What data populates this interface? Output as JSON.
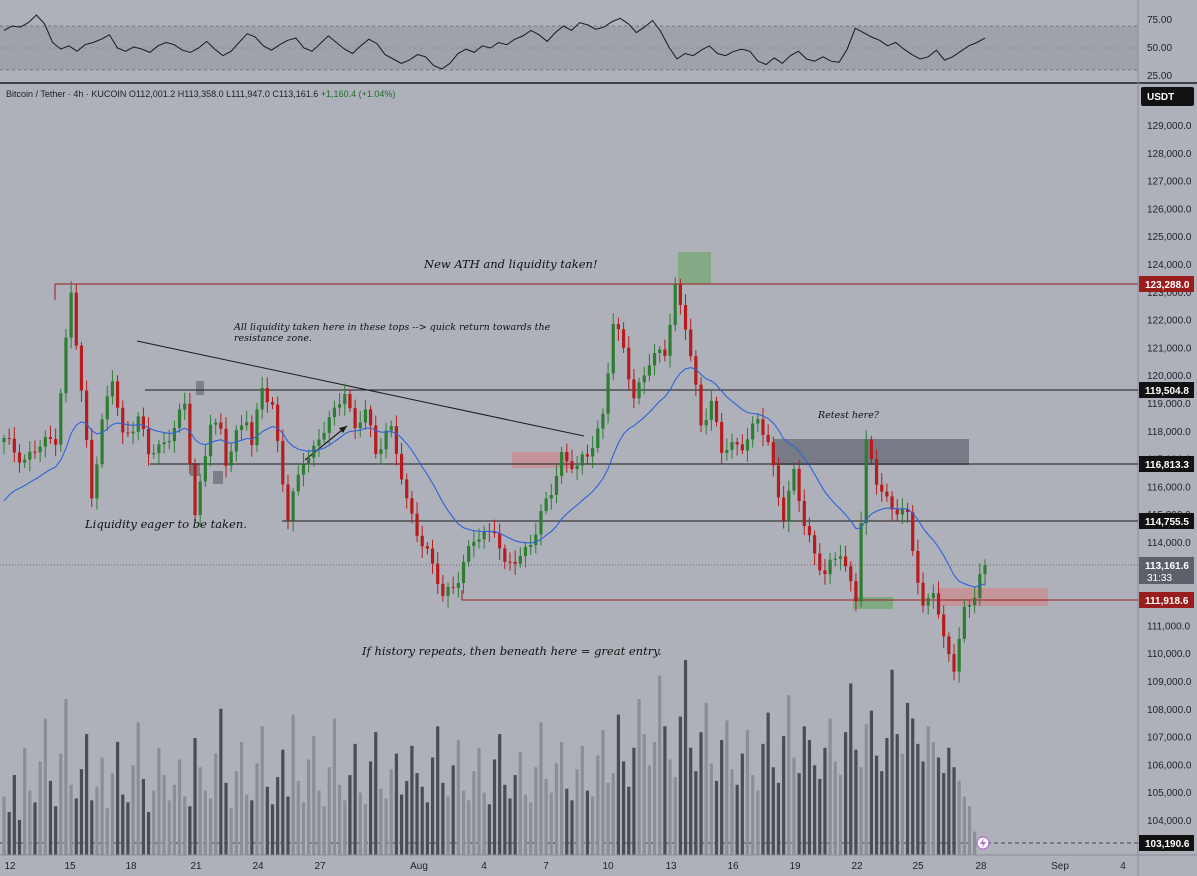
{
  "legend": {
    "symbol": "Bitcoin / Tether · 4h · KUCOIN",
    "open": "O112,001.2",
    "high": "H113,358.0",
    "low": "L111,947.0",
    "close": "C113,161.6",
    "change": "+1,160.4 (+1.04%)"
  },
  "currency_button": "USDT",
  "countdown": "31:33",
  "rsi": {
    "ticks": [
      "75.00",
      "50.00",
      "25.00"
    ],
    "values": [
      66,
      70,
      69,
      73,
      80,
      72,
      55,
      49,
      52,
      47,
      53,
      55,
      58,
      62,
      50,
      47,
      51,
      49,
      46,
      52,
      55,
      53,
      48,
      46,
      50,
      56,
      49,
      43,
      47,
      55,
      63,
      60,
      52,
      48,
      53,
      57,
      59,
      50,
      47,
      54,
      61,
      55,
      49,
      45,
      52,
      58,
      54,
      44,
      40,
      36,
      39,
      44,
      42,
      34,
      31,
      36,
      45,
      49,
      46,
      52,
      50,
      55,
      53,
      58,
      61,
      66,
      62,
      56,
      64,
      70,
      66,
      73,
      71,
      67,
      69,
      74,
      77,
      72,
      64,
      69,
      75,
      65,
      51,
      40,
      45,
      43,
      48,
      52,
      45,
      43,
      47,
      49,
      47,
      38,
      35,
      41,
      36,
      43,
      47,
      40,
      38,
      42,
      38,
      37,
      49,
      68,
      64,
      60,
      57,
      52,
      55,
      49,
      44,
      40,
      42,
      48,
      39,
      42,
      47,
      52,
      55,
      59
    ]
  },
  "chart_data": {
    "type": "candlestick",
    "title": "Bitcoin / Tether · 4h · KUCOIN",
    "ylim": [
      103000,
      130500
    ],
    "y_ticks": [
      "129,000.0",
      "128,000.0",
      "127,000.0",
      "126,000.0",
      "125,000.0",
      "124,000.0",
      "123,000.0",
      "122,000.0",
      "121,000.0",
      "120,000.0",
      "119,000.0",
      "118,000.0",
      "117,000.0",
      "116,000.0",
      "115,000.0",
      "114,000.0",
      "113,000.0",
      "112,000.0",
      "111,000.0",
      "110,000.0",
      "109,000.0",
      "108,000.0",
      "107,000.0",
      "106,000.0",
      "105,000.0",
      "104,000.0"
    ],
    "x_labels": [
      "12",
      "15",
      "18",
      "21",
      "24",
      "27",
      "Aug",
      "4",
      "7",
      "10",
      "13",
      "16",
      "19",
      "22",
      "25",
      "28",
      "Sep",
      "4"
    ],
    "price_path": [
      [
        0,
        117600
      ],
      [
        4,
        117000
      ],
      [
        10,
        117800
      ],
      [
        13,
        122900
      ],
      [
        15,
        119300
      ],
      [
        17,
        115800
      ],
      [
        19,
        118300
      ],
      [
        21,
        119800
      ],
      [
        23,
        117800
      ],
      [
        26,
        118500
      ],
      [
        28,
        117100
      ],
      [
        31,
        117600
      ],
      [
        35,
        118800
      ],
      [
        37,
        115000
      ],
      [
        40,
        118400
      ],
      [
        42,
        117800
      ],
      [
        43,
        116800
      ],
      [
        45,
        118000
      ],
      [
        47,
        118500
      ],
      [
        48,
        117400
      ],
      [
        50,
        119500
      ],
      [
        52,
        119000
      ],
      [
        55,
        114800
      ],
      [
        58,
        117000
      ],
      [
        60,
        117400
      ],
      [
        64,
        118600
      ],
      [
        66,
        119600
      ],
      [
        68,
        118000
      ],
      [
        70,
        118700
      ],
      [
        72,
        117200
      ],
      [
        74,
        118100
      ],
      [
        75,
        118000
      ],
      [
        78,
        115400
      ],
      [
        82,
        113600
      ],
      [
        85,
        112000
      ],
      [
        88,
        112800
      ],
      [
        91,
        114000
      ],
      [
        95,
        114600
      ],
      [
        97,
        113000
      ],
      [
        100,
        113500
      ],
      [
        103,
        114400
      ],
      [
        106,
        115800
      ],
      [
        108,
        117200
      ],
      [
        111,
        116600
      ],
      [
        113,
        117100
      ],
      [
        116,
        118600
      ],
      [
        118,
        121800
      ],
      [
        120,
        120900
      ],
      [
        122,
        119300
      ],
      [
        125,
        120400
      ],
      [
        128,
        120900
      ],
      [
        130,
        123200
      ],
      [
        132,
        121700
      ],
      [
        135,
        118300
      ],
      [
        137,
        119100
      ],
      [
        139,
        117200
      ],
      [
        143,
        117600
      ],
      [
        146,
        118300
      ],
      [
        148,
        117500
      ],
      [
        151,
        115000
      ],
      [
        153,
        116400
      ],
      [
        155,
        114600
      ],
      [
        159,
        112800
      ],
      [
        162,
        113600
      ],
      [
        165,
        112100
      ],
      [
        167,
        117400
      ],
      [
        169,
        116200
      ],
      [
        172,
        115300
      ],
      [
        175,
        114800
      ],
      [
        178,
        111700
      ],
      [
        180,
        112300
      ],
      [
        182,
        110300
      ],
      [
        184,
        109600
      ],
      [
        186,
        111600
      ],
      [
        188,
        112000
      ],
      [
        190,
        113161.6
      ]
    ],
    "volume": [
      0.3,
      0.22,
      0.41,
      0.18,
      0.55,
      0.33,
      0.27,
      0.48,
      0.7,
      0.38,
      0.25,
      0.52,
      0.8,
      0.36,
      0.29,
      0.44,
      0.62,
      0.28,
      0.35,
      0.5,
      0.24,
      0.42,
      0.58,
      0.31,
      0.27,
      0.46,
      0.68,
      0.39,
      0.22,
      0.33,
      0.55,
      0.41,
      0.28,
      0.36,
      0.49,
      0.3,
      0.25,
      0.6,
      0.45,
      0.33,
      0.29,
      0.52,
      0.75,
      0.37,
      0.24,
      0.43,
      0.58,
      0.31,
      0.28,
      0.47,
      0.66,
      0.35,
      0.26,
      0.4,
      0.54,
      0.3,
      0.72,
      0.38,
      0.27,
      0.49,
      0.61,
      0.33,
      0.25,
      0.45,
      0.7,
      0.36,
      0.28,
      0.41,
      0.57,
      0.32,
      0.26,
      0.48,
      0.63,
      0.34,
      0.29,
      0.44,
      0.52,
      0.31,
      0.38,
      0.56,
      0.42,
      0.35,
      0.27,
      0.5,
      0.66,
      0.37,
      0.3,
      0.46,
      0.59,
      0.33,
      0.28,
      0.43,
      0.55,
      0.32,
      0.26,
      0.49,
      0.62,
      0.36,
      0.29,
      0.41,
      0.53,
      0.31,
      0.27,
      0.45,
      0.68,
      0.39,
      0.32,
      0.47,
      0.58,
      0.34,
      0.28,
      0.44,
      0.56,
      0.33,
      0.3,
      0.51,
      0.64,
      0.37,
      0.42,
      0.72,
      0.48,
      0.35,
      0.55,
      0.8,
      0.62,
      0.46,
      0.58,
      0.92,
      0.66,
      0.49,
      0.4,
      0.71,
      1.0,
      0.55,
      0.43,
      0.63,
      0.78,
      0.47,
      0.38,
      0.59,
      0.69,
      0.44,
      0.36,
      0.52,
      0.64,
      0.41,
      0.33,
      0.57,
      0.73,
      0.45,
      0.37,
      0.61,
      0.82,
      0.5,
      0.42,
      0.66,
      0.59,
      0.46,
      0.39,
      0.55,
      0.7,
      0.48,
      0.41,
      0.63,
      0.88,
      0.54,
      0.45,
      0.67,
      0.74,
      0.51,
      0.43,
      0.6,
      0.95,
      0.62,
      0.52,
      0.78,
      0.7,
      0.57,
      0.48,
      0.66,
      0.58,
      0.5,
      0.42,
      0.55,
      0.45,
      0.38,
      0.3,
      0.25,
      0.12
    ]
  },
  "levels": [
    {
      "value": 123288.0,
      "label": "123,288.0",
      "style": "red"
    },
    {
      "value": 119504.8,
      "label": "119,504.8",
      "style": "black"
    },
    {
      "value": 116813.3,
      "label": "116,813.3",
      "style": "black"
    },
    {
      "value": 114755.5,
      "label": "114,755.5",
      "style": "black"
    },
    {
      "value": 113161.6,
      "label": "113,161.6",
      "style": "current"
    },
    {
      "value": 111918.6,
      "label": "111,918.6",
      "style": "red"
    },
    {
      "value": 103190.6,
      "label": "103,190.6",
      "style": "volume"
    }
  ],
  "annotations": {
    "new_ath": "New ATH and liquidity taken!",
    "all_liquidity_1": "All liquidity taken here in these tops --> quick return towards the",
    "all_liquidity_2": "resistance zone.",
    "retest": "Retest here?",
    "liquidity_eager": "Liquidity eager to be taken.",
    "history": "If history repeats, then beneath here = great entry."
  },
  "colors": {
    "background": "#aeb1ba",
    "up": "#2e7d32",
    "down": "#b71c1c",
    "ema": "#2f62d8",
    "rsi": "#1a1a1a",
    "green_zone": "#78a978",
    "red_zone": "#c79095",
    "gray_zone": "#6a6e78"
  }
}
